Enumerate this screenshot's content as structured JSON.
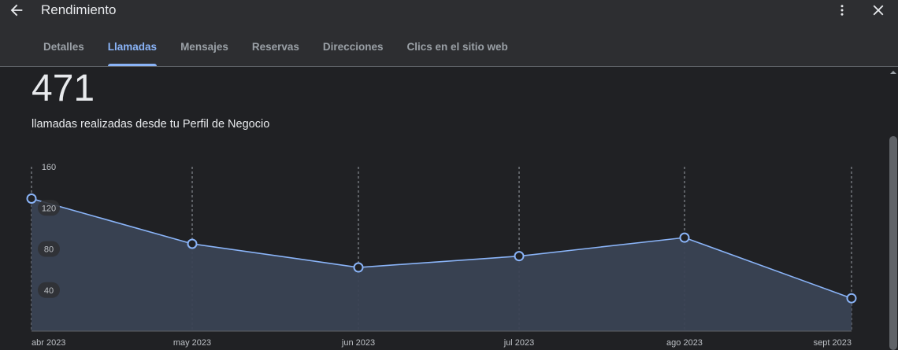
{
  "header": {
    "title": "Rendimiento"
  },
  "tabs": [
    {
      "label": "Detalles",
      "active": false
    },
    {
      "label": "Llamadas",
      "active": true
    },
    {
      "label": "Mensajes",
      "active": false
    },
    {
      "label": "Reservas",
      "active": false
    },
    {
      "label": "Direcciones",
      "active": false
    },
    {
      "label": "Clics en el sitio web",
      "active": false
    }
  ],
  "summary": {
    "total": "471",
    "description": "llamadas realizadas desde tu Perfil de Negocio"
  },
  "colors": {
    "accent": "#8ab4f8",
    "area_fill": "#3a4354",
    "background": "#202124"
  },
  "icons": {
    "back": "arrow-back-icon",
    "more": "more-vert-icon",
    "close": "close-icon"
  },
  "chart_data": {
    "type": "area",
    "categories": [
      "abr 2023",
      "may 2023",
      "jun 2023",
      "jul 2023",
      "ago 2023",
      "sept 2023"
    ],
    "values": [
      129,
      85,
      62,
      73,
      91,
      32
    ],
    "y_ticks": [
      "160",
      "120",
      "80",
      "40"
    ],
    "ylim": [
      0,
      160
    ],
    "grid": "vertical-dashed"
  }
}
